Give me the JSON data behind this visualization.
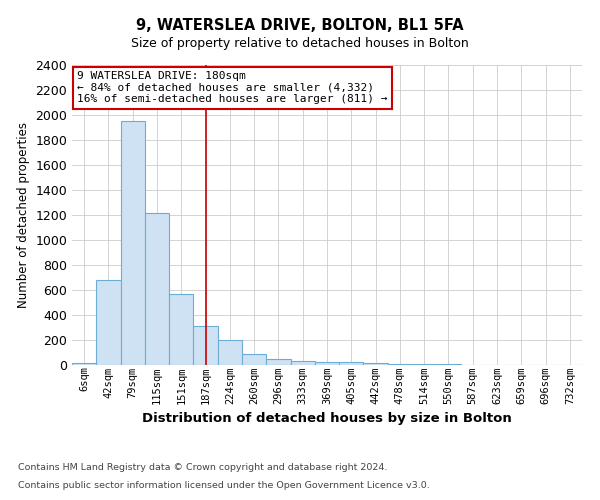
{
  "title1": "9, WATERSLEA DRIVE, BOLTON, BL1 5FA",
  "title2": "Size of property relative to detached houses in Bolton",
  "xlabel": "Distribution of detached houses by size in Bolton",
  "ylabel": "Number of detached properties",
  "bin_labels": [
    "6sqm",
    "42sqm",
    "79sqm",
    "115sqm",
    "151sqm",
    "187sqm",
    "224sqm",
    "260sqm",
    "296sqm",
    "333sqm",
    "369sqm",
    "405sqm",
    "442sqm",
    "478sqm",
    "514sqm",
    "550sqm",
    "587sqm",
    "623sqm",
    "659sqm",
    "696sqm",
    "732sqm"
  ],
  "bar_heights": [
    15,
    680,
    1950,
    1220,
    570,
    310,
    200,
    85,
    45,
    30,
    25,
    25,
    15,
    10,
    8,
    5,
    3,
    0,
    0,
    0,
    0
  ],
  "bar_color": "#cfe2f3",
  "bar_edge_color": "#6aaed6",
  "vline_x_index": 5,
  "vline_color": "#cc0000",
  "annotation_text": "9 WATERSLEA DRIVE: 180sqm\n← 84% of detached houses are smaller (4,332)\n16% of semi-detached houses are larger (811) →",
  "annotation_box_color": "#ffffff",
  "annotation_box_edge": "#cc0000",
  "ylim": [
    0,
    2400
  ],
  "yticks": [
    0,
    200,
    400,
    600,
    800,
    1000,
    1200,
    1400,
    1600,
    1800,
    2000,
    2200,
    2400
  ],
  "footer1": "Contains HM Land Registry data © Crown copyright and database right 2024.",
  "footer2": "Contains public sector information licensed under the Open Government Licence v3.0.",
  "bg_color": "#ffffff",
  "grid_color": "#cccccc"
}
